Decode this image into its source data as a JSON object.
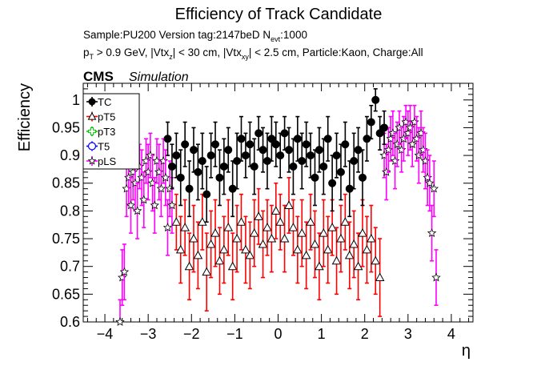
{
  "chart_data": {
    "type": "scatter",
    "title": "Efficiency of Track Candidate",
    "info_line1": "Sample:PU200   Version tag:2147beD  N",
    "info_line1_sub": "evt",
    "info_line1_end": ":1000",
    "info_line2": "p_T > 0.9 GeV, |Vtx_z| < 30 cm, |Vtx_xy| < 2.5 cm, Particle:Kaon, Charge:All",
    "info_line2_parts": [
      "p",
      "T",
      " > 0.9 GeV, |Vtx",
      "z",
      "| < 30 cm, |Vtx",
      "xy",
      "| < 2.5 cm, Particle:Kaon, Charge:All"
    ],
    "cms_label": "CMS",
    "simulation_label": "Simulation",
    "xlabel": "η",
    "ylabel": "Efficiency",
    "xlim": [
      -4.5,
      4.5
    ],
    "ylim": [
      0.6,
      1.03
    ],
    "x_ticks": [
      "−4",
      "−3",
      "−2",
      "−1",
      "0",
      "1",
      "2",
      "3",
      "4"
    ],
    "x_tick_values": [
      -4,
      -3,
      -2,
      -1,
      0,
      1,
      2,
      3,
      4
    ],
    "y_ticks": [
      "0.6",
      "0.65",
      "0.7",
      "0.75",
      "0.8",
      "0.85",
      "0.9",
      "0.95",
      "1"
    ],
    "y_tick_values": [
      0.6,
      0.65,
      0.7,
      0.75,
      0.8,
      0.85,
      0.9,
      0.95,
      1.0
    ],
    "legend_position": "top-left",
    "grid": false,
    "series": [
      {
        "name": "TC",
        "color": "#000000",
        "marker": "filled-circle",
        "points": [
          [
            -2.55,
            0.93,
            0.03
          ],
          [
            -2.45,
            0.88,
            0.04
          ],
          [
            -2.35,
            0.9,
            0.04
          ],
          [
            -2.25,
            0.86,
            0.05
          ],
          [
            -2.15,
            0.92,
            0.04
          ],
          [
            -2.05,
            0.84,
            0.05
          ],
          [
            -1.95,
            0.91,
            0.04
          ],
          [
            -1.85,
            0.87,
            0.05
          ],
          [
            -1.75,
            0.89,
            0.05
          ],
          [
            -1.65,
            0.83,
            0.05
          ],
          [
            -1.55,
            0.9,
            0.04
          ],
          [
            -1.45,
            0.92,
            0.04
          ],
          [
            -1.35,
            0.86,
            0.05
          ],
          [
            -1.25,
            0.88,
            0.05
          ],
          [
            -1.15,
            0.91,
            0.04
          ],
          [
            -1.05,
            0.84,
            0.05
          ],
          [
            -0.95,
            0.89,
            0.05
          ],
          [
            -0.85,
            0.93,
            0.04
          ],
          [
            -0.75,
            0.9,
            0.04
          ],
          [
            -0.65,
            0.92,
            0.04
          ],
          [
            -0.55,
            0.88,
            0.05
          ],
          [
            -0.45,
            0.94,
            0.03
          ],
          [
            -0.35,
            0.91,
            0.04
          ],
          [
            -0.25,
            0.89,
            0.05
          ],
          [
            -0.15,
            0.93,
            0.04
          ],
          [
            -0.05,
            0.92,
            0.04
          ],
          [
            0.05,
            0.9,
            0.04
          ],
          [
            0.15,
            0.94,
            0.03
          ],
          [
            0.25,
            0.91,
            0.04
          ],
          [
            0.35,
            0.88,
            0.05
          ],
          [
            0.45,
            0.93,
            0.04
          ],
          [
            0.55,
            0.89,
            0.05
          ],
          [
            0.65,
            0.92,
            0.04
          ],
          [
            0.75,
            0.9,
            0.04
          ],
          [
            0.85,
            0.86,
            0.05
          ],
          [
            0.95,
            0.91,
            0.04
          ],
          [
            1.05,
            0.88,
            0.05
          ],
          [
            1.15,
            0.93,
            0.04
          ],
          [
            1.25,
            0.85,
            0.05
          ],
          [
            1.35,
            0.9,
            0.04
          ],
          [
            1.45,
            0.87,
            0.05
          ],
          [
            1.55,
            0.92,
            0.04
          ],
          [
            1.65,
            0.84,
            0.05
          ],
          [
            1.75,
            0.89,
            0.05
          ],
          [
            1.85,
            0.91,
            0.04
          ],
          [
            1.95,
            0.86,
            0.05
          ],
          [
            2.05,
            0.93,
            0.04
          ],
          [
            2.15,
            0.96,
            0.03
          ],
          [
            2.25,
            1.0,
            0.02
          ],
          [
            2.35,
            0.94,
            0.03
          ],
          [
            2.45,
            0.95,
            0.03
          ]
        ]
      },
      {
        "name": "pT5",
        "color": "#ff0000",
        "marker": "open-triangle",
        "points": [
          [
            -2.35,
            0.78,
            0.05
          ],
          [
            -2.25,
            0.73,
            0.06
          ],
          [
            -2.15,
            0.77,
            0.05
          ],
          [
            -2.05,
            0.7,
            0.06
          ],
          [
            -1.95,
            0.75,
            0.06
          ],
          [
            -1.85,
            0.72,
            0.06
          ],
          [
            -1.75,
            0.78,
            0.05
          ],
          [
            -1.65,
            0.69,
            0.07
          ],
          [
            -1.55,
            0.74,
            0.06
          ],
          [
            -1.45,
            0.76,
            0.06
          ],
          [
            -1.35,
            0.71,
            0.06
          ],
          [
            -1.25,
            0.73,
            0.06
          ],
          [
            -1.15,
            0.77,
            0.05
          ],
          [
            -1.05,
            0.7,
            0.06
          ],
          [
            -0.95,
            0.75,
            0.06
          ],
          [
            -0.85,
            0.78,
            0.05
          ],
          [
            -0.75,
            0.73,
            0.06
          ],
          [
            -0.65,
            0.72,
            0.06
          ],
          [
            -0.55,
            0.76,
            0.06
          ],
          [
            -0.45,
            0.79,
            0.05
          ],
          [
            -0.35,
            0.74,
            0.06
          ],
          [
            -0.25,
            0.77,
            0.05
          ],
          [
            -0.15,
            0.75,
            0.06
          ],
          [
            -0.05,
            0.8,
            0.05
          ],
          [
            0.05,
            0.78,
            0.05
          ],
          [
            0.15,
            0.75,
            0.06
          ],
          [
            0.25,
            0.81,
            0.05
          ],
          [
            0.35,
            0.77,
            0.05
          ],
          [
            0.45,
            0.73,
            0.06
          ],
          [
            0.55,
            0.76,
            0.06
          ],
          [
            0.65,
            0.72,
            0.06
          ],
          [
            0.75,
            0.78,
            0.05
          ],
          [
            0.85,
            0.74,
            0.06
          ],
          [
            0.95,
            0.7,
            0.06
          ],
          [
            1.05,
            0.76,
            0.06
          ],
          [
            1.15,
            0.73,
            0.06
          ],
          [
            1.25,
            0.77,
            0.05
          ],
          [
            1.35,
            0.71,
            0.06
          ],
          [
            1.45,
            0.75,
            0.06
          ],
          [
            1.55,
            0.78,
            0.05
          ],
          [
            1.65,
            0.72,
            0.06
          ],
          [
            1.75,
            0.74,
            0.06
          ],
          [
            1.85,
            0.7,
            0.06
          ],
          [
            1.95,
            0.76,
            0.06
          ],
          [
            2.05,
            0.73,
            0.06
          ],
          [
            2.15,
            0.75,
            0.06
          ],
          [
            2.25,
            0.71,
            0.06
          ],
          [
            2.35,
            0.68,
            0.07
          ]
        ]
      },
      {
        "name": "pT3",
        "color": "#00cc00",
        "marker": "open-cross",
        "points": []
      },
      {
        "name": "T5",
        "color": "#0000ff",
        "marker": "open-circle",
        "points": []
      },
      {
        "name": "pLS",
        "color": "#ff00ff",
        "marker": "open-star",
        "points": [
          [
            -3.65,
            0.6,
            0.04
          ],
          [
            -3.6,
            0.68,
            0.05
          ],
          [
            -3.55,
            0.69,
            0.05
          ],
          [
            -3.5,
            0.84,
            0.05
          ],
          [
            -3.45,
            0.86,
            0.05
          ],
          [
            -3.4,
            0.81,
            0.05
          ],
          [
            -3.35,
            0.87,
            0.05
          ],
          [
            -3.3,
            0.85,
            0.05
          ],
          [
            -3.25,
            0.8,
            0.05
          ],
          [
            -3.2,
            0.88,
            0.04
          ],
          [
            -3.15,
            0.86,
            0.05
          ],
          [
            -3.1,
            0.82,
            0.05
          ],
          [
            -3.05,
            0.89,
            0.04
          ],
          [
            -3.0,
            0.87,
            0.05
          ],
          [
            -2.95,
            0.9,
            0.04
          ],
          [
            -2.9,
            0.85,
            0.05
          ],
          [
            -2.85,
            0.81,
            0.05
          ],
          [
            -2.8,
            0.89,
            0.04
          ],
          [
            -2.75,
            0.87,
            0.05
          ],
          [
            -2.7,
            0.84,
            0.05
          ],
          [
            -2.65,
            0.89,
            0.04
          ],
          [
            -2.6,
            0.86,
            0.05
          ],
          [
            -2.55,
            0.77,
            0.05
          ],
          [
            -2.5,
            0.84,
            0.05
          ],
          [
            -2.45,
            0.81,
            0.05
          ],
          [
            2.45,
            0.9,
            0.04
          ],
          [
            2.5,
            0.87,
            0.05
          ],
          [
            2.55,
            0.91,
            0.04
          ],
          [
            2.6,
            0.93,
            0.04
          ],
          [
            2.65,
            0.94,
            0.04
          ],
          [
            2.7,
            0.89,
            0.05
          ],
          [
            2.75,
            0.92,
            0.04
          ],
          [
            2.8,
            0.95,
            0.03
          ],
          [
            2.85,
            0.91,
            0.04
          ],
          [
            2.9,
            0.93,
            0.04
          ],
          [
            2.95,
            0.96,
            0.03
          ],
          [
            3.0,
            0.94,
            0.04
          ],
          [
            3.05,
            0.95,
            0.04
          ],
          [
            3.1,
            0.92,
            0.04
          ],
          [
            3.15,
            0.96,
            0.03
          ],
          [
            3.2,
            0.93,
            0.04
          ],
          [
            3.25,
            0.9,
            0.05
          ],
          [
            3.3,
            0.94,
            0.04
          ],
          [
            3.35,
            0.91,
            0.04
          ],
          [
            3.4,
            0.89,
            0.05
          ],
          [
            3.45,
            0.86,
            0.05
          ],
          [
            3.5,
            0.85,
            0.05
          ],
          [
            3.55,
            0.76,
            0.05
          ],
          [
            3.6,
            0.84,
            0.05
          ],
          [
            3.65,
            0.68,
            0.05
          ]
        ]
      }
    ]
  }
}
